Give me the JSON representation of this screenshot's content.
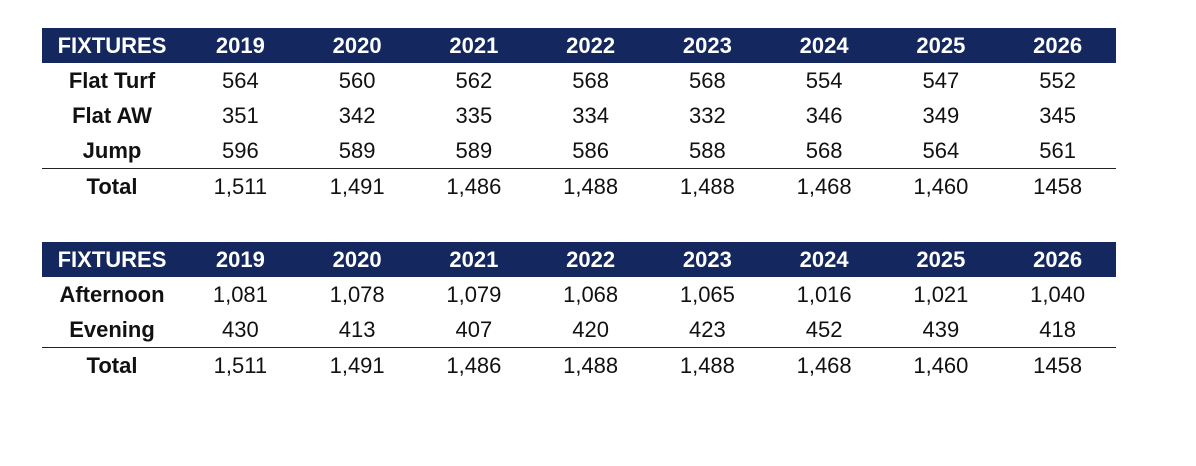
{
  "tables": [
    {
      "header": [
        "FIXTURES",
        "2019",
        "2020",
        "2021",
        "2022",
        "2023",
        "2024",
        "2025",
        "2026"
      ],
      "rows": [
        {
          "label": "Flat Turf",
          "values": [
            "564",
            "560",
            "562",
            "568",
            "568",
            "554",
            "547",
            "552"
          ]
        },
        {
          "label": "Flat AW",
          "values": [
            "351",
            "342",
            "335",
            "334",
            "332",
            "346",
            "349",
            "345"
          ]
        },
        {
          "label": "Jump",
          "values": [
            "596",
            "589",
            "589",
            "586",
            "588",
            "568",
            "564",
            "561"
          ]
        }
      ],
      "total": {
        "label": "Total",
        "values": [
          "1,511",
          "1,491",
          "1,486",
          "1,488",
          "1,488",
          "1,468",
          "1,460",
          "1458"
        ]
      }
    },
    {
      "header": [
        "FIXTURES",
        "2019",
        "2020",
        "2021",
        "2022",
        "2023",
        "2024",
        "2025",
        "2026"
      ],
      "rows": [
        {
          "label": "Afternoon",
          "values": [
            "1,081",
            "1,078",
            "1,079",
            "1,068",
            "1,065",
            "1,016",
            "1,021",
            "1,040"
          ]
        },
        {
          "label": "Evening",
          "values": [
            "430",
            "413",
            "407",
            "420",
            "423",
            "452",
            "439",
            "418"
          ]
        }
      ],
      "total": {
        "label": "Total",
        "values": [
          "1,511",
          "1,491",
          "1,486",
          "1,488",
          "1,488",
          "1,468",
          "1,460",
          "1458"
        ]
      }
    }
  ],
  "colors": {
    "header_background": "#14275e",
    "header_text": "#ffffff",
    "body_text": "#111111"
  }
}
